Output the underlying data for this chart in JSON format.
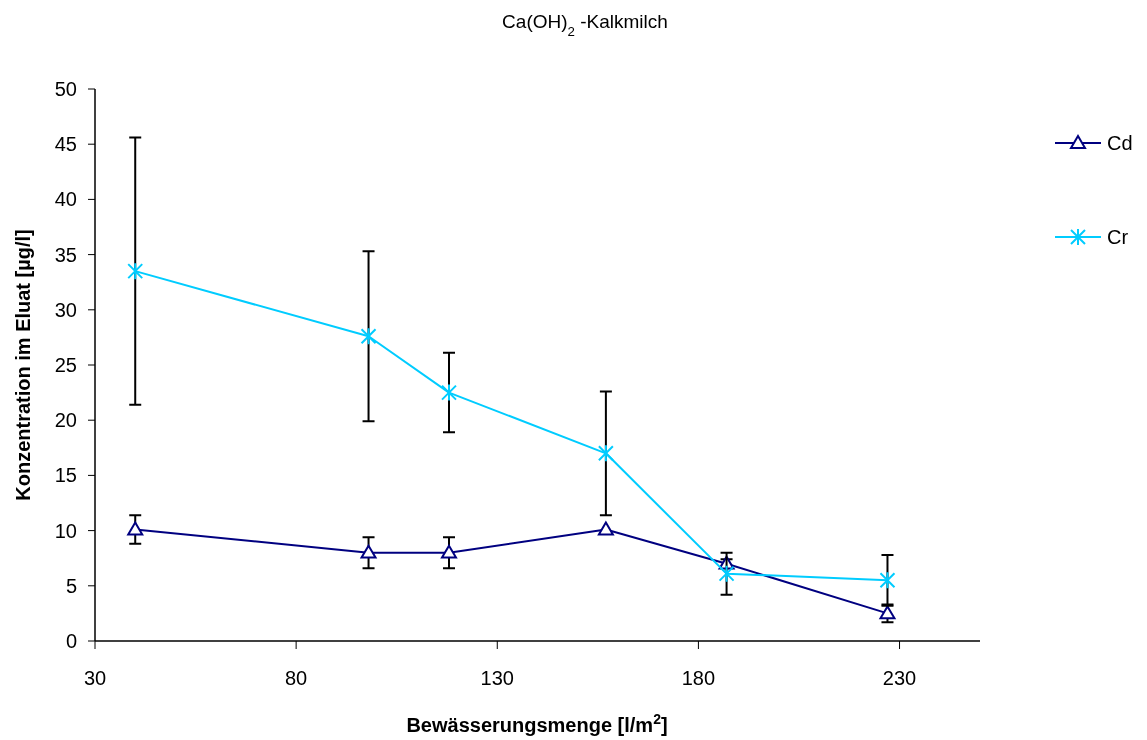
{
  "chart_data": {
    "type": "line",
    "title": "Ca(OH)$_{2}$ -Kalkmilch",
    "xlabel": "Bewässerungsmenge [l/m$^{2}$]",
    "ylabel": "Konzentration im Eluat [µg/l]",
    "xlim": [
      30,
      250
    ],
    "xticks": [
      30,
      80,
      130,
      180,
      230
    ],
    "ylim": [
      0,
      50
    ],
    "yticks": [
      0,
      5,
      10,
      15,
      20,
      25,
      30,
      35,
      40,
      45,
      50
    ],
    "grid": false,
    "legend": "right",
    "line_style": "solid",
    "series": [
      {
        "name": "Cd",
        "color": "#000080",
        "marker": "triangle",
        "x": [
          40,
          98,
          118,
          157,
          187,
          227
        ],
        "values": [
          10.1,
          8.0,
          8.0,
          10.1,
          7.0,
          2.5
        ],
        "errors": [
          1.3,
          1.4,
          1.4,
          null,
          0.4,
          0.8
        ]
      },
      {
        "name": "Cr",
        "color": "#00ccff",
        "marker": "cross",
        "x": [
          40,
          98,
          118,
          157,
          187,
          227
        ],
        "values": [
          33.5,
          27.6,
          22.5,
          17.0,
          6.1,
          5.5
        ],
        "errors": [
          12.1,
          7.7,
          3.6,
          5.6,
          1.9,
          2.3
        ]
      }
    ]
  }
}
